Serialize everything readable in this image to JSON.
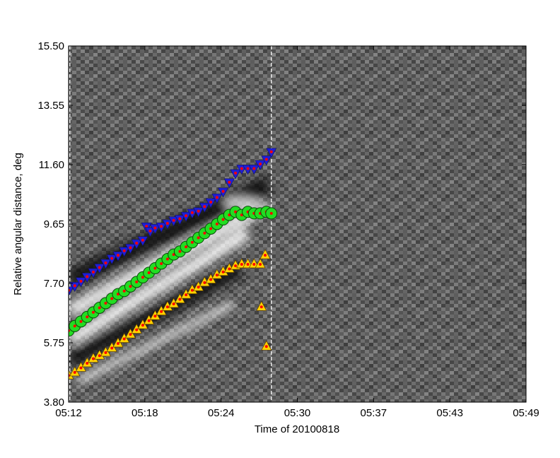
{
  "chart_data": {
    "type": "scatter",
    "title": "",
    "xlabel": "Time of 20100818",
    "ylabel": "Relative angular distance, deg",
    "x_tick_labels": [
      "05:12",
      "05:18",
      "05:24",
      "05:30",
      "05:37",
      "05:43",
      "05:49"
    ],
    "y_tick_labels": [
      "3.80",
      "5.75",
      "7.70",
      "9.65",
      "11.60",
      "13.55",
      "15.50"
    ],
    "y_ticks": [
      3.8,
      5.75,
      7.7,
      9.65,
      11.6,
      13.55,
      15.5
    ],
    "xlim_minutes_from_0512": [
      0,
      37
    ],
    "ylim": [
      3.8,
      15.5
    ],
    "background": "grayscale time-distance difference image",
    "markers": {
      "top": "blue down-triangle with red center",
      "middle": "green circle with red center",
      "bottom": "yellow up-triangle with red center"
    },
    "colors": {
      "blue": "#1f1fd6",
      "green": "#22dd22",
      "yellow": "#ffd200",
      "red": "#ff0000"
    },
    "vertical_lines_minutes_from_0512": [
      0.1,
      16.4
    ],
    "series": [
      {
        "marker": "down-triangle",
        "points": [
          [
            0.0,
            7.45
          ],
          [
            0.5,
            7.6
          ],
          [
            1.0,
            7.75
          ],
          [
            1.5,
            7.9
          ],
          [
            2.0,
            8.05
          ],
          [
            2.5,
            8.2
          ],
          [
            3.0,
            8.35
          ],
          [
            3.5,
            8.5
          ],
          [
            4.0,
            8.6
          ],
          [
            4.5,
            8.75
          ],
          [
            5.0,
            8.85
          ],
          [
            5.5,
            9.0
          ],
          [
            6.0,
            9.1
          ],
          [
            6.3,
            9.55
          ],
          [
            6.6,
            9.4
          ],
          [
            7.0,
            9.5
          ],
          [
            7.5,
            9.55
          ],
          [
            8.0,
            9.65
          ],
          [
            8.5,
            9.75
          ],
          [
            9.0,
            9.8
          ],
          [
            9.5,
            9.9
          ],
          [
            10.0,
            10.0
          ],
          [
            10.5,
            10.05
          ],
          [
            11.0,
            10.2
          ],
          [
            11.5,
            10.35
          ],
          [
            12.0,
            10.5
          ],
          [
            12.5,
            10.7
          ],
          [
            13.0,
            11.0
          ],
          [
            13.5,
            11.3
          ],
          [
            14.0,
            11.45
          ],
          [
            14.5,
            11.45
          ],
          [
            15.0,
            11.45
          ],
          [
            15.5,
            11.6
          ],
          [
            16.0,
            11.75
          ],
          [
            16.4,
            12.0
          ]
        ]
      },
      {
        "marker": "circle",
        "points": [
          [
            0.0,
            6.15
          ],
          [
            0.5,
            6.3
          ],
          [
            1.0,
            6.45
          ],
          [
            1.5,
            6.6
          ],
          [
            2.0,
            6.75
          ],
          [
            2.5,
            6.9
          ],
          [
            3.0,
            7.05
          ],
          [
            3.5,
            7.2
          ],
          [
            4.0,
            7.35
          ],
          [
            4.5,
            7.45
          ],
          [
            5.0,
            7.6
          ],
          [
            5.5,
            7.75
          ],
          [
            6.0,
            7.9
          ],
          [
            6.5,
            8.05
          ],
          [
            7.0,
            8.2
          ],
          [
            7.5,
            8.35
          ],
          [
            8.0,
            8.5
          ],
          [
            8.5,
            8.65
          ],
          [
            9.0,
            8.75
          ],
          [
            9.5,
            8.9
          ],
          [
            10.0,
            9.05
          ],
          [
            10.5,
            9.2
          ],
          [
            11.0,
            9.35
          ],
          [
            11.5,
            9.5
          ],
          [
            12.0,
            9.65
          ],
          [
            12.5,
            9.8
          ],
          [
            13.0,
            9.95
          ],
          [
            13.5,
            10.05
          ],
          [
            14.0,
            9.95
          ],
          [
            14.5,
            10.05
          ],
          [
            15.0,
            10.0
          ],
          [
            15.5,
            10.0
          ],
          [
            16.0,
            10.05
          ],
          [
            16.4,
            10.0
          ]
        ]
      },
      {
        "marker": "up-triangle",
        "points": [
          [
            0.0,
            4.7
          ],
          [
            0.5,
            4.8
          ],
          [
            1.0,
            4.95
          ],
          [
            1.5,
            5.1
          ],
          [
            2.0,
            5.25
          ],
          [
            2.5,
            5.35
          ],
          [
            3.0,
            5.45
          ],
          [
            3.5,
            5.6
          ],
          [
            4.0,
            5.75
          ],
          [
            4.5,
            5.9
          ],
          [
            5.0,
            6.05
          ],
          [
            5.5,
            6.2
          ],
          [
            6.0,
            6.35
          ],
          [
            6.5,
            6.5
          ],
          [
            7.0,
            6.65
          ],
          [
            7.5,
            6.8
          ],
          [
            8.0,
            6.95
          ],
          [
            8.5,
            7.05
          ],
          [
            9.0,
            7.2
          ],
          [
            9.5,
            7.35
          ],
          [
            10.0,
            7.5
          ],
          [
            10.5,
            7.6
          ],
          [
            11.0,
            7.75
          ],
          [
            11.5,
            7.85
          ],
          [
            12.0,
            8.0
          ],
          [
            12.5,
            8.1
          ],
          [
            13.0,
            8.2
          ],
          [
            13.5,
            8.3
          ],
          [
            14.0,
            8.35
          ],
          [
            14.5,
            8.35
          ],
          [
            15.0,
            8.35
          ],
          [
            15.5,
            8.35
          ],
          [
            15.9,
            8.65
          ],
          [
            15.6,
            6.95
          ],
          [
            16.0,
            5.65
          ]
        ]
      }
    ]
  }
}
